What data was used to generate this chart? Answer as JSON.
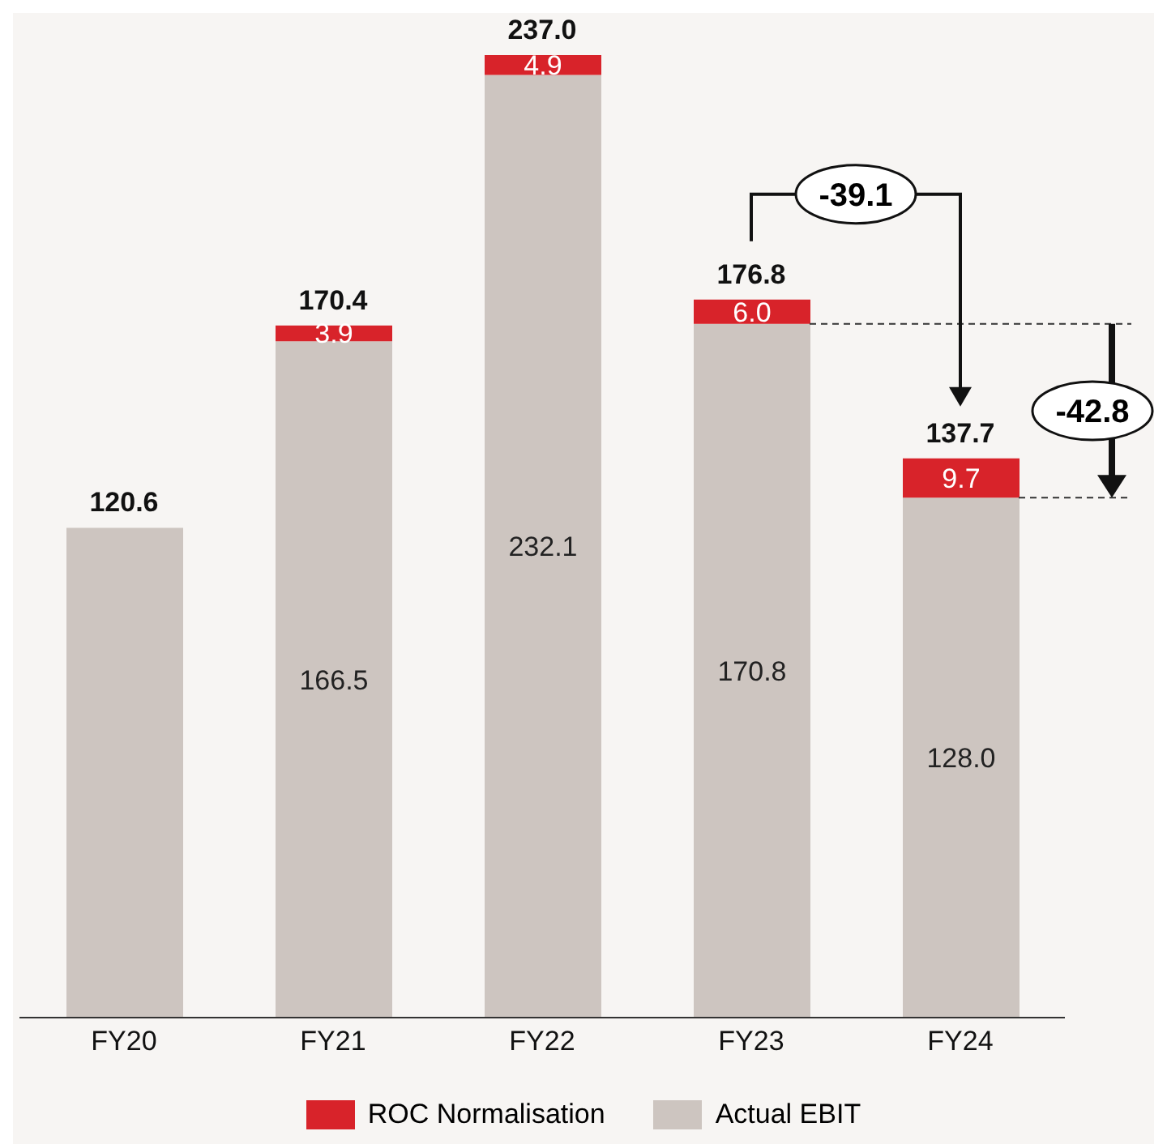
{
  "chart_data": {
    "type": "bar",
    "stacked": true,
    "categories": [
      "FY20",
      "FY21",
      "FY22",
      "FY23",
      "FY24"
    ],
    "series": [
      {
        "name": "Actual EBIT",
        "color": "#cdc5c0",
        "values": [
          120.6,
          166.5,
          232.1,
          170.8,
          128.0
        ],
        "value_labels": [
          null,
          "166.5",
          "232.1",
          "170.8",
          "128.0"
        ]
      },
      {
        "name": "ROC Normalisation",
        "color": "#d8232a",
        "values": [
          null,
          3.9,
          4.9,
          6.0,
          9.7
        ],
        "value_labels": [
          null,
          "3.9",
          "4.9",
          "6.0",
          "9.7"
        ]
      }
    ],
    "totals": [
      "120.6",
      "170.4",
      "237.0",
      "176.8",
      "137.7"
    ],
    "annotations": [
      "-39.1",
      "-42.8"
    ],
    "legend": "bottom"
  }
}
